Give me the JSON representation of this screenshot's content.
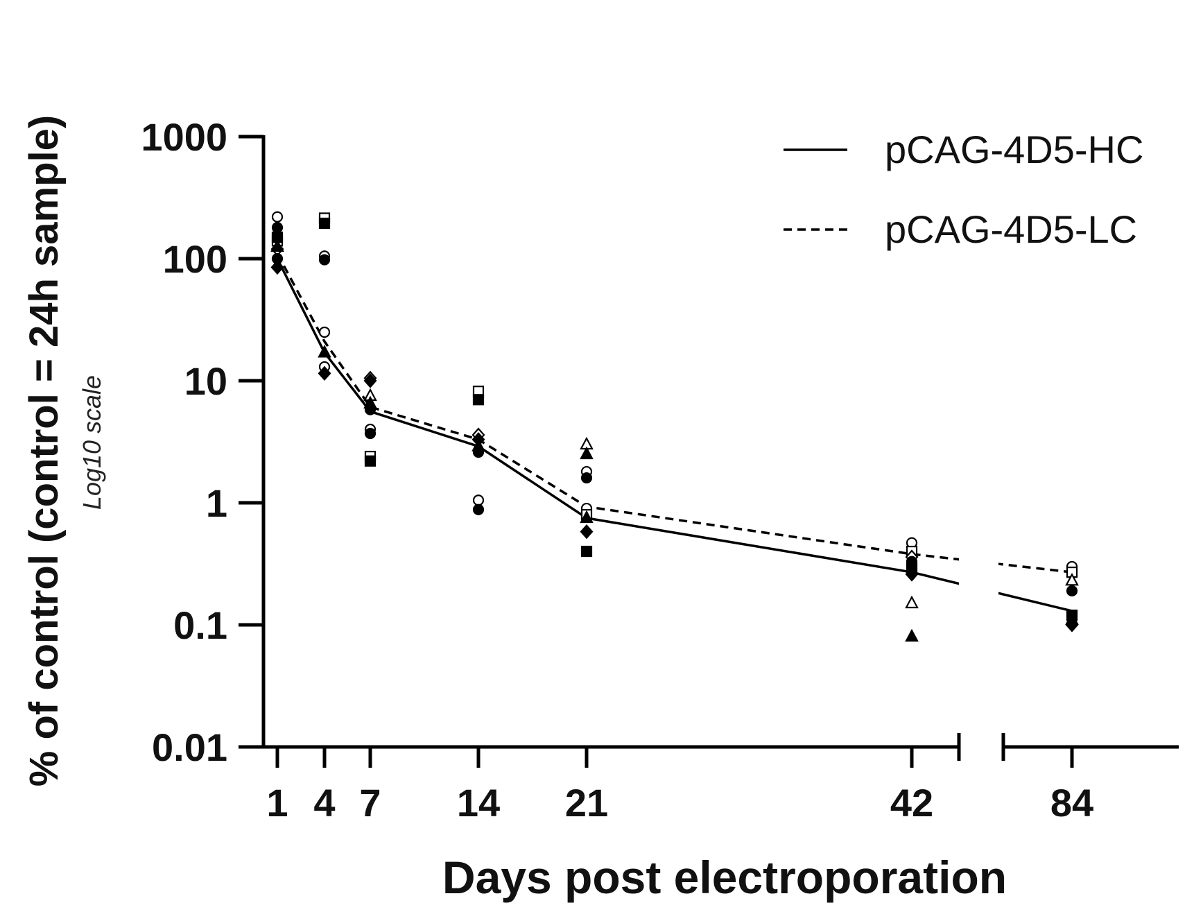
{
  "chart_data": {
    "type": "line",
    "title": "",
    "xlabel": "Days post electroporation",
    "ylabel": "% of control (control = 24h sample)",
    "ylabel_note": "Log10 scale",
    "yscale": "log10",
    "ylim": [
      0.01,
      1000
    ],
    "y_ticks": [
      0.01,
      0.1,
      1,
      10,
      100,
      1000
    ],
    "y_tick_labels": [
      "0.01",
      "0.1",
      "1",
      "10",
      "100",
      "1000"
    ],
    "x_ticks": [
      1,
      4,
      7,
      14,
      21,
      42,
      84
    ],
    "x_tick_labels": [
      "1",
      "4",
      "7",
      "14",
      "21",
      "42",
      "84"
    ],
    "x_axis_break": "between 42 and 84",
    "legend_position": "top-right",
    "series": [
      {
        "name": "pCAG-4D5-HC",
        "style": "solid",
        "x": [
          1,
          4,
          7,
          14,
          21,
          42,
          84
        ],
        "values": [
          100,
          17,
          5.6,
          2.9,
          0.75,
          0.27,
          0.13
        ],
        "points": [
          {
            "x": 1,
            "y": 180,
            "marker": "circle"
          },
          {
            "x": 1,
            "y": 150,
            "marker": "square"
          },
          {
            "x": 1,
            "y": 125,
            "marker": "triangle"
          },
          {
            "x": 1,
            "y": 100,
            "marker": "circle"
          },
          {
            "x": 1,
            "y": 85,
            "marker": "diamond"
          },
          {
            "x": 4,
            "y": 195,
            "marker": "square"
          },
          {
            "x": 4,
            "y": 98,
            "marker": "circle"
          },
          {
            "x": 4,
            "y": 17,
            "marker": "triangle"
          },
          {
            "x": 4,
            "y": 11.5,
            "marker": "diamond"
          },
          {
            "x": 7,
            "y": 10,
            "marker": "diamond"
          },
          {
            "x": 7,
            "y": 6.5,
            "marker": "triangle"
          },
          {
            "x": 7,
            "y": 5.8,
            "marker": "circle"
          },
          {
            "x": 7,
            "y": 3.7,
            "marker": "circle"
          },
          {
            "x": 7,
            "y": 2.2,
            "marker": "square"
          },
          {
            "x": 14,
            "y": 7,
            "marker": "square"
          },
          {
            "x": 14,
            "y": 3.3,
            "marker": "diamond"
          },
          {
            "x": 14,
            "y": 2.9,
            "marker": "triangle"
          },
          {
            "x": 14,
            "y": 2.6,
            "marker": "circle"
          },
          {
            "x": 14,
            "y": 0.88,
            "marker": "circle"
          },
          {
            "x": 21,
            "y": 2.5,
            "marker": "triangle"
          },
          {
            "x": 21,
            "y": 1.6,
            "marker": "circle"
          },
          {
            "x": 21,
            "y": 0.75,
            "marker": "triangle"
          },
          {
            "x": 21,
            "y": 0.58,
            "marker": "diamond"
          },
          {
            "x": 21,
            "y": 0.4,
            "marker": "square"
          },
          {
            "x": 42,
            "y": 0.33,
            "marker": "circle"
          },
          {
            "x": 42,
            "y": 0.29,
            "marker": "square"
          },
          {
            "x": 42,
            "y": 0.26,
            "marker": "diamond"
          },
          {
            "x": 42,
            "y": 0.08,
            "marker": "triangle"
          },
          {
            "x": 84,
            "y": 0.19,
            "marker": "circle"
          },
          {
            "x": 84,
            "y": 0.12,
            "marker": "square"
          },
          {
            "x": 84,
            "y": 0.11,
            "marker": "triangle"
          },
          {
            "x": 84,
            "y": 0.1,
            "marker": "diamond"
          }
        ]
      },
      {
        "name": "pCAG-4D5-LC",
        "style": "dashed",
        "x": [
          1,
          4,
          7,
          14,
          21,
          42,
          84
        ],
        "values": [
          110,
          21,
          6.1,
          3.3,
          0.93,
          0.38,
          0.27
        ],
        "points": [
          {
            "x": 1,
            "y": 220,
            "marker": "circle"
          },
          {
            "x": 1,
            "y": 140,
            "marker": "square"
          },
          {
            "x": 1,
            "y": 120,
            "marker": "diamond"
          },
          {
            "x": 4,
            "y": 215,
            "marker": "square"
          },
          {
            "x": 4,
            "y": 105,
            "marker": "circle"
          },
          {
            "x": 4,
            "y": 25,
            "marker": "circle"
          },
          {
            "x": 4,
            "y": 13,
            "marker": "circle"
          },
          {
            "x": 7,
            "y": 10.5,
            "marker": "diamond"
          },
          {
            "x": 7,
            "y": 7.5,
            "marker": "triangle"
          },
          {
            "x": 7,
            "y": 4,
            "marker": "circle"
          },
          {
            "x": 7,
            "y": 2.4,
            "marker": "square"
          },
          {
            "x": 14,
            "y": 8.2,
            "marker": "square"
          },
          {
            "x": 14,
            "y": 3.6,
            "marker": "diamond"
          },
          {
            "x": 14,
            "y": 1.05,
            "marker": "circle"
          },
          {
            "x": 21,
            "y": 3,
            "marker": "triangle"
          },
          {
            "x": 21,
            "y": 1.8,
            "marker": "circle"
          },
          {
            "x": 21,
            "y": 0.9,
            "marker": "circle"
          },
          {
            "x": 21,
            "y": 0.8,
            "marker": "square"
          },
          {
            "x": 42,
            "y": 0.47,
            "marker": "circle"
          },
          {
            "x": 42,
            "y": 0.4,
            "marker": "square"
          },
          {
            "x": 42,
            "y": 0.36,
            "marker": "diamond"
          },
          {
            "x": 42,
            "y": 0.15,
            "marker": "triangle"
          },
          {
            "x": 84,
            "y": 0.3,
            "marker": "circle"
          },
          {
            "x": 84,
            "y": 0.27,
            "marker": "square"
          },
          {
            "x": 84,
            "y": 0.23,
            "marker": "triangle"
          }
        ]
      }
    ]
  }
}
